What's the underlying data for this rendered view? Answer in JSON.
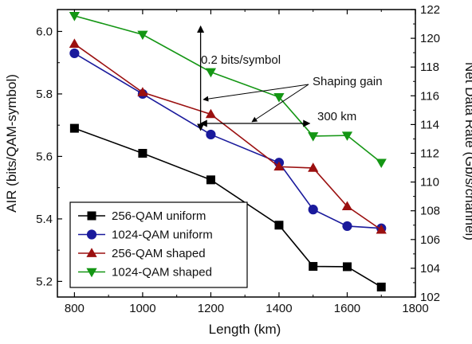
{
  "chart_data": {
    "type": "line",
    "title": "",
    "xlabel": "Length (km)",
    "ylabel": "AIR (bits/QAM-symbol)",
    "ylabel_right": "Net Data Rate (Gb/s/channel)",
    "xlim": [
      750,
      1800
    ],
    "ylim": [
      5.15,
      6.07
    ],
    "ylim_right": [
      102,
      122
    ],
    "x_ticks": [
      800,
      1000,
      1200,
      1400,
      1600,
      1800
    ],
    "y_ticks": [
      5.2,
      5.4,
      5.6,
      5.8,
      6.0
    ],
    "y_ticks_right": [
      102,
      104,
      106,
      108,
      110,
      112,
      114,
      116,
      118,
      120,
      122
    ],
    "x": [
      800,
      1000,
      1200,
      1400,
      1500,
      1600,
      1700
    ],
    "grid": false,
    "legend_position": "bottom-left",
    "series": [
      {
        "name": "256-QAM uniform",
        "color": "#000000",
        "marker": "square",
        "values": [
          5.69,
          5.61,
          5.525,
          5.38,
          5.248,
          5.247,
          5.182
        ]
      },
      {
        "name": "1024-QAM uniform",
        "color": "#1a1a9c",
        "marker": "circle",
        "values": [
          5.93,
          5.8,
          5.67,
          5.58,
          5.43,
          5.377,
          5.37
        ]
      },
      {
        "name": "256-QAM shaped",
        "color": "#9b1010",
        "marker": "triangle-up",
        "values": [
          5.96,
          5.805,
          5.735,
          5.567,
          5.563,
          5.44,
          5.365
        ]
      },
      {
        "name": "1024-QAM shaped",
        "color": "#149614",
        "marker": "triangle-down",
        "values": [
          6.05,
          5.99,
          5.87,
          5.79,
          5.665,
          5.667,
          5.58
        ]
      }
    ],
    "annotations": {
      "bits_gain": "0.2 bits/symbol",
      "shaping_gain": "Shaping gain",
      "distance_gain": "300 km"
    }
  }
}
